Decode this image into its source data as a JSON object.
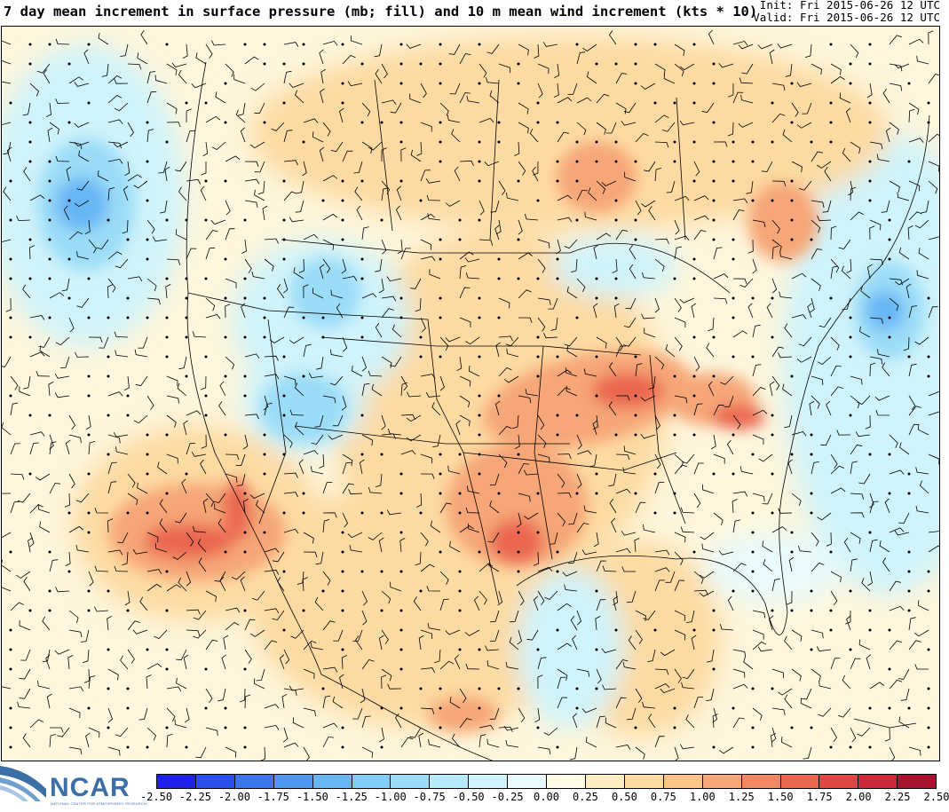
{
  "header": {
    "title": "7 day mean increment in surface pressure (mb; fill) and 10 m mean wind increment (kts * 10)",
    "init": "Init: Fri 2015-06-26 12 UTC",
    "valid": "Valid: Fri 2015-06-26 12 UTC"
  },
  "logo": {
    "text": "NCAR",
    "subtitle": "NATIONAL CENTER FOR ATMOSPHERIC RESEARCH"
  },
  "colorbar": {
    "labels": [
      "-2.50",
      "-2.25",
      "-2.00",
      "-1.75",
      "-1.50",
      "-1.25",
      "-1.00",
      "-0.75",
      "-0.50",
      "-0.25",
      "0.00",
      "0.25",
      "0.50",
      "0.75",
      "1.00",
      "1.25",
      "1.50",
      "1.75",
      "2.00",
      "2.25",
      "2.50"
    ],
    "colors": [
      "#1e22e6",
      "#2a4fee",
      "#3b78f0",
      "#4f98f2",
      "#66b6f4",
      "#80cdf6",
      "#9bdcf8",
      "#b6e9f9",
      "#cff3fa",
      "#e8fafb",
      "#fffbe6",
      "#feeec2",
      "#fddaa2",
      "#fac487",
      "#f6a677",
      "#f28862",
      "#ea6650",
      "#e04644",
      "#cc2a3a",
      "#a8122e"
    ]
  },
  "map": {
    "fill_colors": {
      "neutral": "#fdf6dc",
      "weak_positive": "#feeec2",
      "positive": "#fddaa2",
      "moderate_positive": "#f6a677",
      "strong_positive": "#ea6650",
      "weak_negative": "#e8fafb",
      "negative": "#cff3fa",
      "moderate_negative": "#9bdcf8",
      "strong_negative": "#66b6f4"
    }
  }
}
